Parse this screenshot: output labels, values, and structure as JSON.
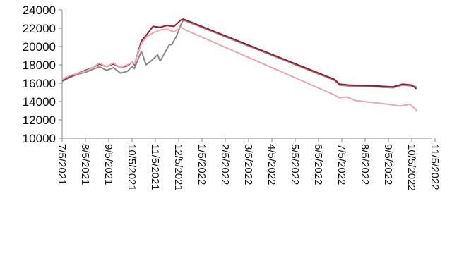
{
  "chart_data": {
    "type": "line",
    "title": "",
    "xlabel": "",
    "ylabel": "",
    "ylim": [
      10000,
      24000
    ],
    "yticks": [
      "24000",
      "22000",
      "20000",
      "18000",
      "16000",
      "14000",
      "12000",
      "10000"
    ],
    "ytick_values": [
      24000,
      22000,
      20000,
      18000,
      16000,
      14000,
      12000,
      10000
    ],
    "xticks": [
      "7/5",
      "8/5",
      "9/5",
      "10/5",
      "11/5",
      "12/5",
      "1/5",
      "2/5",
      "3/5",
      "4/5",
      "5/5",
      "6/5",
      "7/5",
      "8/5",
      "9/5",
      "10/5",
      "11/5"
    ],
    "year_labels": [
      "2021",
      "2021",
      "2021",
      "2021",
      "2021",
      "2021",
      "2022",
      "2022",
      "2022",
      "2022",
      "2022",
      "2022",
      "2022",
      "2022",
      "2022",
      "2022",
      "2022"
    ],
    "grid": false,
    "legend": "bottom",
    "series": [
      {
        "color": "#8a8a8a",
        "points": [
          [
            0,
            16200
          ],
          [
            0.3,
            16600
          ],
          [
            0.7,
            17000
          ],
          [
            1.0,
            17200
          ],
          [
            1.3,
            17500
          ],
          [
            1.6,
            17800
          ],
          [
            1.9,
            17400
          ],
          [
            2.2,
            17700
          ],
          [
            2.5,
            17100
          ],
          [
            2.8,
            17300
          ],
          [
            3.0,
            17800
          ],
          [
            3.1,
            17600
          ],
          [
            3.4,
            19500
          ],
          [
            3.6,
            18000
          ],
          [
            3.8,
            18400
          ],
          [
            4.1,
            19100
          ],
          [
            4.2,
            18400
          ],
          [
            4.4,
            19300
          ],
          [
            4.6,
            20200
          ],
          [
            4.7,
            20200
          ],
          [
            4.9,
            21100
          ],
          [
            5.1,
            22400
          ],
          [
            5.2,
            22900
          ],
          [
            11.7,
            16300
          ],
          [
            11.9,
            15800
          ],
          [
            12.3,
            15700
          ],
          [
            13.5,
            15600
          ],
          [
            14.2,
            15500
          ],
          [
            14.6,
            15800
          ],
          [
            15.0,
            15700
          ],
          [
            15.2,
            15600
          ]
        ]
      },
      {
        "color": "#9c1a2c",
        "points": [
          [
            0,
            16300
          ],
          [
            0.3,
            16700
          ],
          [
            0.7,
            17100
          ],
          [
            1.0,
            17400
          ],
          [
            1.3,
            17700
          ],
          [
            1.6,
            18100
          ],
          [
            1.9,
            17800
          ],
          [
            2.2,
            18100
          ],
          [
            2.5,
            17700
          ],
          [
            2.8,
            17900
          ],
          [
            3.0,
            18300
          ],
          [
            3.1,
            18000
          ],
          [
            3.4,
            20600
          ],
          [
            3.6,
            21200
          ],
          [
            3.9,
            22200
          ],
          [
            4.2,
            22100
          ],
          [
            4.5,
            22300
          ],
          [
            4.8,
            22200
          ],
          [
            5.1,
            22900
          ],
          [
            5.2,
            23000
          ],
          [
            11.7,
            16400
          ],
          [
            11.9,
            15900
          ],
          [
            12.3,
            15800
          ],
          [
            13.5,
            15700
          ],
          [
            14.2,
            15600
          ],
          [
            14.6,
            15900
          ],
          [
            15.0,
            15800
          ],
          [
            15.2,
            15400
          ]
        ]
      },
      {
        "color": "#e8a8b2",
        "points": [
          [
            0,
            16400
          ],
          [
            0.3,
            16800
          ],
          [
            0.7,
            17100
          ],
          [
            1.0,
            17300
          ],
          [
            1.3,
            17700
          ],
          [
            1.6,
            18200
          ],
          [
            1.9,
            17800
          ],
          [
            2.2,
            18200
          ],
          [
            2.5,
            17700
          ],
          [
            2.8,
            18000
          ],
          [
            3.0,
            18300
          ],
          [
            3.1,
            18100
          ],
          [
            3.4,
            20300
          ],
          [
            3.6,
            21000
          ],
          [
            3.9,
            21500
          ],
          [
            4.2,
            21800
          ],
          [
            4.5,
            21900
          ],
          [
            4.8,
            21600
          ],
          [
            5.1,
            22100
          ],
          [
            5.3,
            21800
          ],
          [
            11.7,
            14700
          ],
          [
            11.9,
            14400
          ],
          [
            12.2,
            14500
          ],
          [
            12.6,
            14100
          ],
          [
            13.3,
            13900
          ],
          [
            14.0,
            13700
          ],
          [
            14.5,
            13500
          ],
          [
            14.9,
            13700
          ],
          [
            15.2,
            13100
          ],
          [
            15.2,
            12900
          ]
        ]
      }
    ]
  }
}
